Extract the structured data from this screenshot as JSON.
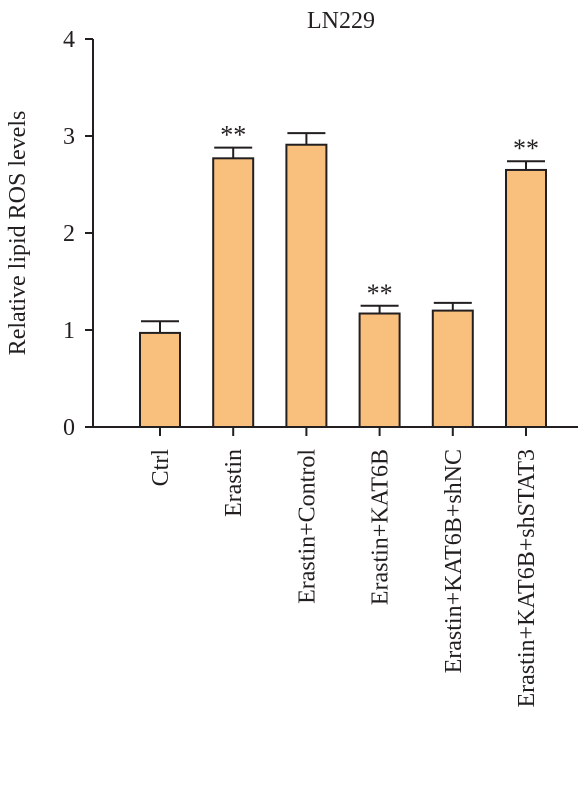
{
  "chart_data": {
    "type": "bar",
    "title": "LN229",
    "xlabel": "",
    "ylabel": "Relative lipid ROS levels",
    "ylim": [
      0,
      4
    ],
    "yticks": [
      0,
      1,
      2,
      3,
      4
    ],
    "grid": false,
    "legend": "none",
    "bar_color": "#f8bf7d",
    "categories": [
      "Ctrl",
      "Erastin",
      "Erastin+Control",
      "Erastin+KAT6B",
      "Erastin+KAT6B+shNC",
      "Erastin+KAT6B+shSTAT3"
    ],
    "values": [
      0.97,
      2.77,
      2.91,
      1.17,
      1.2,
      2.65
    ],
    "errors": [
      0.12,
      0.11,
      0.12,
      0.08,
      0.08,
      0.09
    ],
    "annotations": [
      "",
      "**",
      "",
      "**",
      "",
      "**"
    ]
  }
}
